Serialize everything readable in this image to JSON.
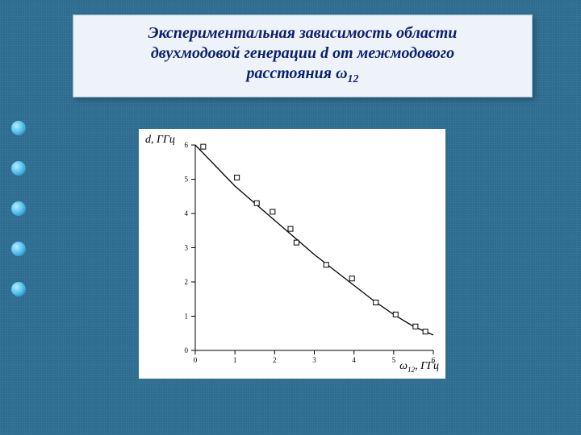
{
  "title": {
    "line1": "Экспериментальная зависимость области",
    "line2": "двухмодовой генерации d от межмодового",
    "line3_prefix": "расстояния ω",
    "line3_sub": "12"
  },
  "chart": {
    "type": "scatter+line",
    "y_axis_label_prefix": "d",
    "y_axis_label_unit": ", ГГц",
    "x_axis_label_prefix": "ω",
    "x_axis_label_sub": "12",
    "x_axis_label_unit": ", ГГц",
    "xlim": [
      0,
      6
    ],
    "ylim": [
      0,
      6
    ],
    "xtick_step": 1,
    "ytick_step": 1,
    "tick_fontsize": 9,
    "background_color": "#ffffff",
    "axis_color": "#000000",
    "marker_style": "open-square",
    "marker_size": 6,
    "marker_stroke_color": "#000000",
    "marker_fill_color": "none",
    "line_color": "#000000",
    "line_width": 1.3,
    "fit_curve": [
      [
        0.0,
        6.0
      ],
      [
        0.5,
        5.4
      ],
      [
        1.0,
        4.8
      ],
      [
        1.5,
        4.3
      ],
      [
        2.0,
        3.8
      ],
      [
        2.5,
        3.3
      ],
      [
        3.0,
        2.8
      ],
      [
        3.5,
        2.35
      ],
      [
        4.0,
        1.9
      ],
      [
        4.5,
        1.45
      ],
      [
        5.0,
        1.05
      ],
      [
        5.5,
        0.7
      ],
      [
        5.8,
        0.55
      ],
      [
        6.0,
        0.45
      ]
    ],
    "points": [
      [
        0.2,
        5.95
      ],
      [
        1.05,
        5.05
      ],
      [
        1.55,
        4.3
      ],
      [
        1.95,
        4.05
      ],
      [
        2.4,
        3.55
      ],
      [
        2.55,
        3.15
      ],
      [
        3.3,
        2.5
      ],
      [
        3.95,
        2.1
      ],
      [
        4.55,
        1.4
      ],
      [
        5.05,
        1.05
      ],
      [
        5.55,
        0.7
      ],
      [
        5.8,
        0.55
      ]
    ]
  },
  "colors": {
    "slide_bg": "#2d6b8e",
    "title_bg": "#eef3f9",
    "title_text": "#0b1f6e"
  }
}
